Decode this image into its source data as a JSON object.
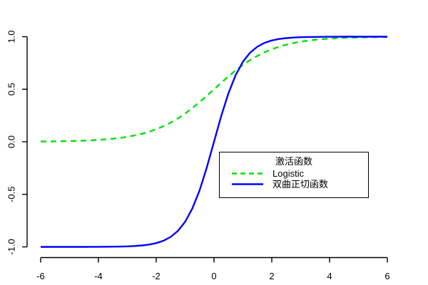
{
  "chart_data": {
    "type": "line",
    "title": "",
    "xlabel": "",
    "ylabel": "",
    "grid": false,
    "background": "#ffffff",
    "axis_color": "#000000",
    "xlim": [
      -6,
      6
    ],
    "ylim": [
      -1,
      1
    ],
    "x_axis": {
      "tick_values": [
        -6,
        -4,
        -2,
        0,
        2,
        4,
        6
      ],
      "tick_labels": [
        "-6",
        "-4",
        "-2",
        "0",
        "2",
        "4",
        "6"
      ]
    },
    "y_axis": {
      "tick_values": [
        -1.0,
        -0.5,
        0.0,
        0.5,
        1.0
      ],
      "tick_labels": [
        "-1.0",
        "-0.5",
        "0.0",
        "0.5",
        "1.0"
      ],
      "label_rotation": "vertical"
    },
    "x": [
      -6,
      -5.75,
      -5.5,
      -5.25,
      -5,
      -4.75,
      -4.5,
      -4.25,
      -4,
      -3.75,
      -3.5,
      -3.25,
      -3,
      -2.75,
      -2.5,
      -2.25,
      -2,
      -1.75,
      -1.5,
      -1.25,
      -1,
      -0.75,
      -0.5,
      -0.25,
      0,
      0.25,
      0.5,
      0.75,
      1,
      1.25,
      1.5,
      1.75,
      2,
      2.25,
      2.5,
      2.75,
      3,
      3.25,
      3.5,
      3.75,
      4,
      4.25,
      4.5,
      4.75,
      5,
      5.25,
      5.5,
      5.75,
      6
    ],
    "series": [
      {
        "id": "logistic",
        "name": "Logistic",
        "formula": "1/(1+exp(-x))",
        "color": "#00E400",
        "style": "dashed",
        "line_width": 2.4,
        "values": [
          0.0025,
          0.0032,
          0.0041,
          0.0052,
          0.0067,
          0.0086,
          0.011,
          0.0141,
          0.018,
          0.023,
          0.0293,
          0.0373,
          0.0474,
          0.0601,
          0.0759,
          0.0953,
          0.1192,
          0.148,
          0.1824,
          0.2227,
          0.2689,
          0.3208,
          0.3775,
          0.4378,
          0.5,
          0.5622,
          0.6225,
          0.6792,
          0.7311,
          0.7773,
          0.8176,
          0.852,
          0.8808,
          0.9047,
          0.9241,
          0.9399,
          0.9526,
          0.9627,
          0.9707,
          0.977,
          0.982,
          0.9859,
          0.989,
          0.9914,
          0.9933,
          0.9948,
          0.9959,
          0.9968,
          0.9975
        ]
      },
      {
        "id": "tanh",
        "name": "双曲正切函数",
        "formula": "tanh(x)",
        "color": "#0000FF",
        "style": "solid",
        "line_width": 2.4,
        "values": [
          -1,
          -1,
          -0.9999,
          -0.9999,
          -0.9999,
          -0.9999,
          -0.9998,
          -0.9996,
          -0.9993,
          -0.9989,
          -0.9982,
          -0.997,
          -0.9951,
          -0.9919,
          -0.9866,
          -0.978,
          -0.964,
          -0.9414,
          -0.9051,
          -0.8483,
          -0.7616,
          -0.6351,
          -0.4621,
          -0.2449,
          0,
          0.2449,
          0.4621,
          0.6351,
          0.7616,
          0.8483,
          0.9051,
          0.9414,
          0.964,
          0.978,
          0.9866,
          0.9919,
          0.9951,
          0.997,
          0.9982,
          0.9989,
          0.9993,
          0.9996,
          0.9998,
          0.9999,
          0.9999,
          0.9999,
          1,
          1,
          1
        ]
      }
    ],
    "legend": {
      "position": "right-center-inside",
      "border": true,
      "title": "激活函数",
      "entries": [
        {
          "label": "Logistic",
          "series": "logistic"
        },
        {
          "label": "双曲正切函数",
          "series": "tanh"
        }
      ]
    }
  }
}
